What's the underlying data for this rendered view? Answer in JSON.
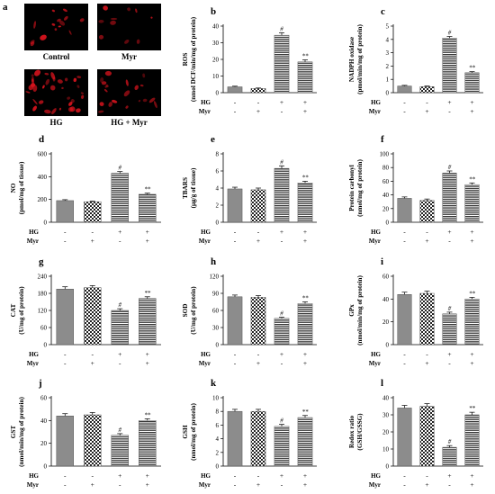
{
  "figure": {
    "micrograph_panel": {
      "letter": "a",
      "tiles": [
        {
          "label": "Control",
          "density": 0.35
        },
        {
          "label": "Myr",
          "density": 0.25
        },
        {
          "label": "HG",
          "density": 0.85
        },
        {
          "label": "HG + Myr",
          "density": 0.5
        }
      ]
    },
    "hg_row_label": "HG",
    "myr_row_label": "Myr",
    "hg_signs": [
      "-",
      "-",
      "+",
      "+"
    ],
    "myr_signs": [
      "-",
      "+",
      "-",
      "+"
    ]
  },
  "colors": {
    "bar_solid": "#8c8c8c",
    "bar_check_dark": "#222222",
    "bar_stripe_dark": "#333333",
    "axis": "#000000",
    "fluorescence": "#e0141e",
    "micro_background": "#000000"
  },
  "chart_data": [
    {
      "letter": "b",
      "type": "bar",
      "ylabel": "ROS\n(nmol DCF/min/mg of protein)",
      "ylim": [
        0,
        40
      ],
      "ticks": [
        0,
        10,
        20,
        30,
        40
      ],
      "values": [
        3.5,
        2.5,
        34.5,
        18.5
      ],
      "errors": [
        0.4,
        0.3,
        1.5,
        1.2
      ],
      "sig": [
        "",
        "",
        "#",
        "**"
      ],
      "tick_labels": [
        "0",
        "10",
        "20",
        "30",
        "40"
      ]
    },
    {
      "letter": "c",
      "type": "bar",
      "ylabel": "NADPH oxidase\n(pmol/min/mg of protein)",
      "ylim": [
        0,
        5
      ],
      "ticks": [
        0,
        1,
        2,
        3,
        4,
        5
      ],
      "values": [
        0.5,
        0.45,
        4.1,
        1.5
      ],
      "errors": [
        0.05,
        0.05,
        0.12,
        0.08
      ],
      "sig": [
        "",
        "",
        "#",
        "**"
      ],
      "tick_labels": [
        "0",
        "1",
        "2",
        "3",
        "4",
        "5"
      ]
    },
    {
      "letter": "d",
      "type": "bar",
      "ylabel": "NO\n(pmol/mg of tissue)",
      "ylim": [
        0,
        600
      ],
      "ticks": [
        0,
        200,
        400,
        600
      ],
      "values": [
        190,
        180,
        430,
        245
      ],
      "errors": [
        8,
        6,
        15,
        10
      ],
      "sig": [
        "",
        "",
        "#",
        "**"
      ],
      "tick_labels": [
        "0",
        "200",
        "400",
        "600"
      ]
    },
    {
      "letter": "e",
      "type": "bar",
      "ylabel": "TBARS\n(μg/g of tissue)",
      "ylim": [
        0,
        8
      ],
      "ticks": [
        0,
        2,
        4,
        6,
        8
      ],
      "values": [
        3.9,
        3.8,
        6.3,
        4.6
      ],
      "errors": [
        0.2,
        0.2,
        0.3,
        0.2
      ],
      "sig": [
        "",
        "",
        "#",
        "**"
      ],
      "tick_labels": [
        "0",
        "2",
        "4",
        "6",
        "8"
      ]
    },
    {
      "letter": "f",
      "type": "bar",
      "ylabel": "Protein carbonyl\n(nmol/mg of protein)",
      "ylim": [
        0,
        100
      ],
      "ticks": [
        0,
        20,
        40,
        60,
        80,
        100
      ],
      "values": [
        35,
        32,
        72,
        55
      ],
      "errors": [
        2,
        2,
        3,
        2.5
      ],
      "sig": [
        "",
        "",
        "#",
        "**"
      ],
      "tick_labels": [
        "0",
        "20",
        "40",
        "60",
        "80",
        "100"
      ]
    },
    {
      "letter": "g",
      "type": "bar",
      "ylabel": "CAT\n(U/mg of protein)",
      "ylim": [
        0,
        240
      ],
      "ticks": [
        0,
        60,
        120,
        180,
        240
      ],
      "values": [
        195,
        200,
        120,
        162
      ],
      "errors": [
        8,
        7,
        6,
        6
      ],
      "sig": [
        "",
        "",
        "#",
        "**"
      ],
      "tick_labels": [
        "0",
        "60",
        "120",
        "180",
        "240"
      ]
    },
    {
      "letter": "h",
      "type": "bar",
      "ylabel": "SOD\n(U/mg of protein)",
      "ylim": [
        0,
        120
      ],
      "ticks": [
        0,
        30,
        60,
        90,
        120
      ],
      "values": [
        84,
        83,
        46,
        72
      ],
      "errors": [
        3,
        3,
        2,
        3
      ],
      "sig": [
        "",
        "",
        "#",
        "**"
      ],
      "tick_labels": [
        "0",
        "30",
        "60",
        "90",
        "120"
      ]
    },
    {
      "letter": "i",
      "type": "bar",
      "ylabel": "GPx\n(nmol/min/mg of protein)",
      "ylim": [
        0,
        60
      ],
      "ticks": [
        0,
        20,
        40,
        60
      ],
      "values": [
        44,
        45,
        27,
        40
      ],
      "errors": [
        2,
        2,
        1.5,
        1.5
      ],
      "sig": [
        "",
        "",
        "#",
        "**"
      ],
      "tick_labels": [
        "0",
        "20",
        "40",
        "60"
      ]
    },
    {
      "letter": "j",
      "type": "bar",
      "ylabel": "GST\n(nmol/min/mg of protein)",
      "ylim": [
        0,
        60
      ],
      "ticks": [
        0,
        20,
        40,
        60
      ],
      "values": [
        44,
        45,
        27,
        40
      ],
      "errors": [
        2,
        2,
        1.5,
        1.5
      ],
      "sig": [
        "",
        "",
        "#",
        "**"
      ],
      "tick_labels": [
        "0",
        "20",
        "40",
        "60"
      ]
    },
    {
      "letter": "k",
      "type": "bar",
      "ylabel": "GSH\n(nmol/mg of protein)",
      "ylim": [
        0,
        10
      ],
      "ticks": [
        0,
        2,
        4,
        6,
        8,
        10
      ],
      "values": [
        8.0,
        8.0,
        5.8,
        7.1
      ],
      "errors": [
        0.3,
        0.3,
        0.3,
        0.3
      ],
      "sig": [
        "",
        "",
        "#",
        "**"
      ],
      "tick_labels": [
        "0",
        "2",
        "4",
        "6",
        "8",
        "10"
      ]
    },
    {
      "letter": "l",
      "type": "bar",
      "ylabel": "Redox ratio\n(GSH/GSSG)",
      "ylim": [
        0,
        40
      ],
      "ticks": [
        0,
        10,
        20,
        30,
        40
      ],
      "values": [
        34,
        35,
        11,
        30
      ],
      "errors": [
        1.5,
        1.5,
        1,
        1.5
      ],
      "sig": [
        "",
        "",
        "#",
        "**"
      ],
      "tick_labels": [
        "0",
        "10",
        "20",
        "30",
        "40"
      ]
    }
  ]
}
